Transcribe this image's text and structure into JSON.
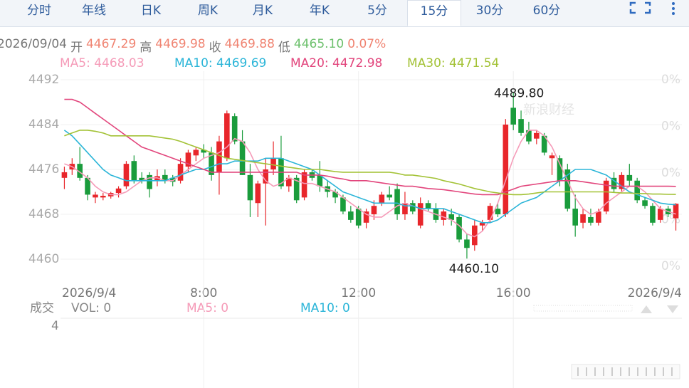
{
  "tabs": [
    "分时",
    "年线",
    "日K",
    "周K",
    "月K",
    "年K",
    "5分",
    "15分",
    "30分",
    "60分"
  ],
  "info": [
    {
      "text": "2026/09/04",
      "color": "#777777"
    },
    {
      "text": "开",
      "color": "#777777"
    },
    {
      "text": "4467.29",
      "color": "#f08472"
    },
    {
      "text": "高",
      "color": "#777777"
    },
    {
      "text": "4469.98",
      "color": "#f08472"
    },
    {
      "text": "收",
      "color": "#777777"
    },
    {
      "text": "4469.88",
      "color": "#f08472"
    },
    {
      "text": "低",
      "color": "#777777"
    },
    {
      "text": "4465.10",
      "color": "#6cc06c"
    },
    {
      "text": "0.07%",
      "color": "#f08472"
    }
  ],
  "watermark": "新浪财经",
  "chart_data": {
    "type": "candlestick",
    "categories": [
      "2026/9/4",
      null,
      null,
      null,
      null,
      null,
      null,
      null,
      null,
      null,
      null,
      null,
      null,
      null,
      null,
      null,
      null,
      null,
      "8:00",
      null,
      null,
      null,
      null,
      null,
      null,
      null,
      null,
      null,
      null,
      null,
      null,
      null,
      null,
      null,
      null,
      null,
      null,
      null,
      "12:00",
      null,
      null,
      null,
      null,
      null,
      null,
      null,
      null,
      null,
      null,
      null,
      null,
      null,
      null,
      null,
      null,
      null,
      null,
      null,
      "16:00",
      null,
      null,
      null,
      null,
      null,
      null,
      null,
      null,
      null,
      null,
      null,
      null,
      null,
      null,
      null,
      null,
      null,
      null,
      null,
      null,
      "2026/9/4"
    ],
    "open": [
      4474.5,
      4476,
      4477,
      4474.5,
      4471,
      4471,
      4471.2,
      4471.8,
      4473,
      4477.5,
      4474.5,
      4475,
      4474,
      4475,
      4474.5,
      4474,
      4476.5,
      4478.5,
      4479.5,
      4479,
      4475.5,
      4478,
      4485.5,
      4481,
      4475,
      4470,
      4473.5,
      4476,
      4478,
      4473,
      4474.5,
      4471,
      4475.5,
      4475,
      4473,
      4472,
      4471,
      4468.5,
      4469,
      4466.5,
      4468,
      4470,
      4471.5,
      4472.5,
      4468,
      4470,
      4466,
      4470,
      4469,
      4467,
      4468,
      4467.5,
      4463.5,
      4462.5,
      4466,
      4467,
      4469,
      4468,
      4487,
      4485,
      4483,
      4481.5,
      4482,
      4478,
      4478,
      4476,
      4469,
      4466.5,
      4467.5,
      4466.5,
      4468.5,
      4474.5,
      4472.5,
      4475,
      4474,
      4470.5,
      4469.5,
      4467,
      4469,
      4467.29
    ],
    "high": [
      4476.5,
      4478,
      4480,
      4475,
      4472,
      4471.8,
      4472,
      4473,
      4477.5,
      4478.5,
      4475.5,
      4475.5,
      4476,
      4476,
      4475,
      4478,
      4479.5,
      4480,
      4480.5,
      4480,
      4482,
      4486.5,
      4486,
      4483,
      4477,
      4474,
      4478,
      4481,
      4482,
      4475,
      4475,
      4476,
      4476,
      4477.5,
      4474,
      4472.5,
      4471.5,
      4469.5,
      4469.5,
      4469,
      4470.5,
      4472,
      4473,
      4473.5,
      4472,
      4470.5,
      4471,
      4470.5,
      4470,
      4469,
      4469,
      4468,
      4464.5,
      4467,
      4467,
      4470,
      4470,
      4485,
      4489.8,
      4486.5,
      4484.5,
      4483,
      4482.5,
      4479,
      4478.5,
      4477,
      4471.5,
      4469,
      4469,
      4469,
      4474.5,
      4475.5,
      4475.5,
      4477,
      4474.5,
      4471,
      4470,
      4469.5,
      4469.5,
      4469.98
    ],
    "low": [
      4472.5,
      4475,
      4474,
      4470.5,
      4470,
      4470.5,
      4470.8,
      4471,
      4472.5,
      4473.5,
      4473.5,
      4471,
      4473,
      4473.5,
      4473,
      4473.5,
      4475.5,
      4477.5,
      4478,
      4474,
      4471.5,
      4477.5,
      4480.5,
      4475,
      4467.5,
      4467.5,
      4466,
      4475,
      4472.5,
      4472,
      4470,
      4470.5,
      4474,
      4472,
      4471,
      4470,
      4468,
      4466.5,
      4465.5,
      4465.5,
      4467,
      4469.5,
      4470.5,
      4467,
      4467,
      4468,
      4465.5,
      4468.5,
      4466.5,
      4466,
      4466,
      4463,
      4460.1,
      4461.5,
      4465,
      4466.5,
      4467.5,
      4467.5,
      4483,
      4482,
      4480.5,
      4480.5,
      4478.5,
      4475,
      4473,
      4468.5,
      4464,
      4465.5,
      4466,
      4466,
      4468,
      4472,
      4472,
      4473,
      4470,
      4469,
      4466,
      4466.5,
      4467.5,
      4465.1
    ],
    "close": [
      4475.5,
      4477,
      4474.5,
      4471.5,
      4471.5,
      4471.3,
      4471.8,
      4472.6,
      4477,
      4474,
      4474,
      4472.5,
      4474.8,
      4474,
      4473.8,
      4477,
      4479,
      4479.5,
      4479,
      4475,
      4481,
      4486,
      4481,
      4475,
      4470.5,
      4473.5,
      4476,
      4478,
      4473,
      4474.5,
      4470.5,
      4475.5,
      4474.5,
      4473,
      4472,
      4471,
      4468.5,
      4467,
      4466,
      4468.5,
      4469.5,
      4471.5,
      4471,
      4468,
      4470,
      4468.5,
      4470,
      4469,
      4467,
      4468.5,
      4467,
      4463.5,
      4462,
      4466,
      4466.5,
      4469.5,
      4468,
      4484,
      4484,
      4482.5,
      4481,
      4482.5,
      4479,
      4478.5,
      4474,
      4469,
      4466,
      4468,
      4466.5,
      4468.5,
      4474,
      4472.5,
      4475,
      4474,
      4470.5,
      4469.5,
      4466.5,
      4469,
      4468,
      4469.88
    ],
    "up_color": "#e8262b",
    "down_color": "#1a9c3c",
    "series": [
      {
        "name": "MA5: 4468.03",
        "color": "#f59bb8",
        "values": [
          4477,
          4476.5,
          4475.5,
          4474.5,
          4473,
          4472,
          4471.5,
          4471.5,
          4472,
          4473,
          4474,
          4474.5,
          4474.5,
          4474,
          4474,
          4475,
          4476,
          4477,
          4478,
          4478.5,
          4479,
          4480,
          4481.5,
          4481,
          4479,
          4476,
          4474,
          4473,
          4473.5,
          4474.5,
          4474,
          4473.5,
          4473.5,
          4473,
          4472.5,
          4472,
          4471,
          4470,
          4469,
          4468,
          4467.5,
          4467.5,
          4468.5,
          4469.5,
          4470,
          4469.5,
          4469,
          4468.5,
          4468,
          4467.5,
          4467,
          4466,
          4464.5,
          4464,
          4465,
          4467,
          4470,
          4474,
          4478,
          4481,
          4483,
          4483,
          4482,
          4480,
          4477,
          4474,
          4471,
          4469,
          4468,
          4468.5,
          4470,
          4471,
          4472,
          4473,
          4473,
          4472,
          4470.5,
          4469,
          4468.5,
          4468.03
        ]
      },
      {
        "name": "MA10: 4469.69",
        "color": "#2bb5d8",
        "values": [
          4483,
          4482,
          4480.5,
          4479,
          4477.5,
          4476,
          4475,
          4474.5,
          4474,
          4474,
          4474,
          4474,
          4474,
          4474,
          4474.5,
          4475,
          4475.5,
          4476,
          4476,
          4476.5,
          4477,
          4477,
          4477.5,
          4477.5,
          4477.5,
          4477.5,
          4478,
          4478,
          4478,
          4477.5,
          4477,
          4476.5,
          4476,
          4475,
          4474,
          4473,
          4472,
          4471.5,
          4471,
          4470.5,
          4470,
          4470,
          4470,
          4470,
          4469.5,
          4469.5,
          4469,
          4469,
          4469,
          4469,
          4468.5,
          4468,
          4467.5,
          4467,
          4466.5,
          4466.5,
          4467,
          4468,
          4469,
          4470,
          4470.5,
          4471,
          4472,
          4473,
          4474,
          4475,
          4476,
          4476,
          4476,
          4475.5,
          4475,
          4474,
          4473,
          4472,
          4471.5,
          4471,
          4470.5,
          4470,
          4469.8,
          4469.69
        ]
      },
      {
        "name": "MA20: 4472.98",
        "color": "#e2457c",
        "values": [
          4488.5,
          4488.5,
          4488,
          4487,
          4486,
          4485,
          4484,
          4483,
          4482,
          4481,
          4480,
          4479.5,
          4479,
          4478.5,
          4478,
          4477.5,
          4477,
          4476.5,
          4476,
          4475.5,
          4475.5,
          4475.5,
          4475.5,
          4475.5,
          4475.5,
          4475.5,
          4475.5,
          4475.5,
          4475.5,
          4475.5,
          4475.5,
          4475,
          4475,
          4475,
          4474.8,
          4474.5,
          4474.3,
          4474,
          4474,
          4474,
          4473.8,
          4473.6,
          4473.4,
          4473.2,
          4473,
          4473,
          4472.8,
          4472.6,
          4472.5,
          4472.4,
          4472.2,
          4472,
          4471.8,
          4471.6,
          4471.5,
          4471.5,
          4471.5,
          4472,
          4472.5,
          4473,
          4473.2,
          4473.4,
          4473.6,
          4473.8,
          4474,
          4474,
          4474,
          4473.8,
          4473.6,
          4473.4,
          4473.2,
          4473,
          4473,
          4473,
          4473,
          4473,
          4473,
          4473,
          4473,
          4472.98
        ]
      },
      {
        "name": "MA30: 4471.54",
        "color": "#a3c236",
        "values": [
          4482,
          4482.5,
          4483,
          4483,
          4482.8,
          4482.5,
          4482,
          4482,
          4482,
          4482,
          4482,
          4482,
          4481.8,
          4481.6,
          4481.4,
          4481,
          4480.5,
          4480,
          4479.5,
          4479,
          4478.5,
          4478,
          4477.8,
          4477.6,
          4477.4,
          4477.2,
          4477,
          4476.8,
          4476.6,
          4476.4,
          4476.2,
          4476,
          4476,
          4476,
          4475.8,
          4475.6,
          4475.5,
          4475.5,
          4475.5,
          4475.5,
          4475.5,
          4475.5,
          4475.5,
          4475.3,
          4475,
          4475,
          4474.8,
          4474.6,
          4474.4,
          4474,
          4473.7,
          4473.4,
          4473,
          4472.6,
          4472.3,
          4472,
          4471.8,
          4471.6,
          4471.5,
          4471.5,
          4471.6,
          4471.8,
          4472,
          4472,
          4472,
          4472,
          4472,
          4472,
          4472,
          4472,
          4472,
          4471.9,
          4471.8,
          4471.8,
          4471.7,
          4471.7,
          4471.6,
          4471.6,
          4471.55,
          4471.54
        ]
      }
    ],
    "ylim": [
      4456,
      4494
    ],
    "yticks": [
      4460,
      4468,
      4476,
      4484,
      4492
    ],
    "grid": true,
    "right_axis_labels": [
      "0%",
      "0%",
      "0%",
      "0%",
      "0%"
    ],
    "high_label": {
      "value": 4489.8,
      "label": "4489.80"
    },
    "low_label": {
      "value": 4460.1,
      "label": "4460.10"
    }
  },
  "volume": {
    "title": "成交",
    "vol": "VOL: 0",
    "ma5": "MA5: 0",
    "ma10": "MA10: 0",
    "ytick": "4"
  }
}
